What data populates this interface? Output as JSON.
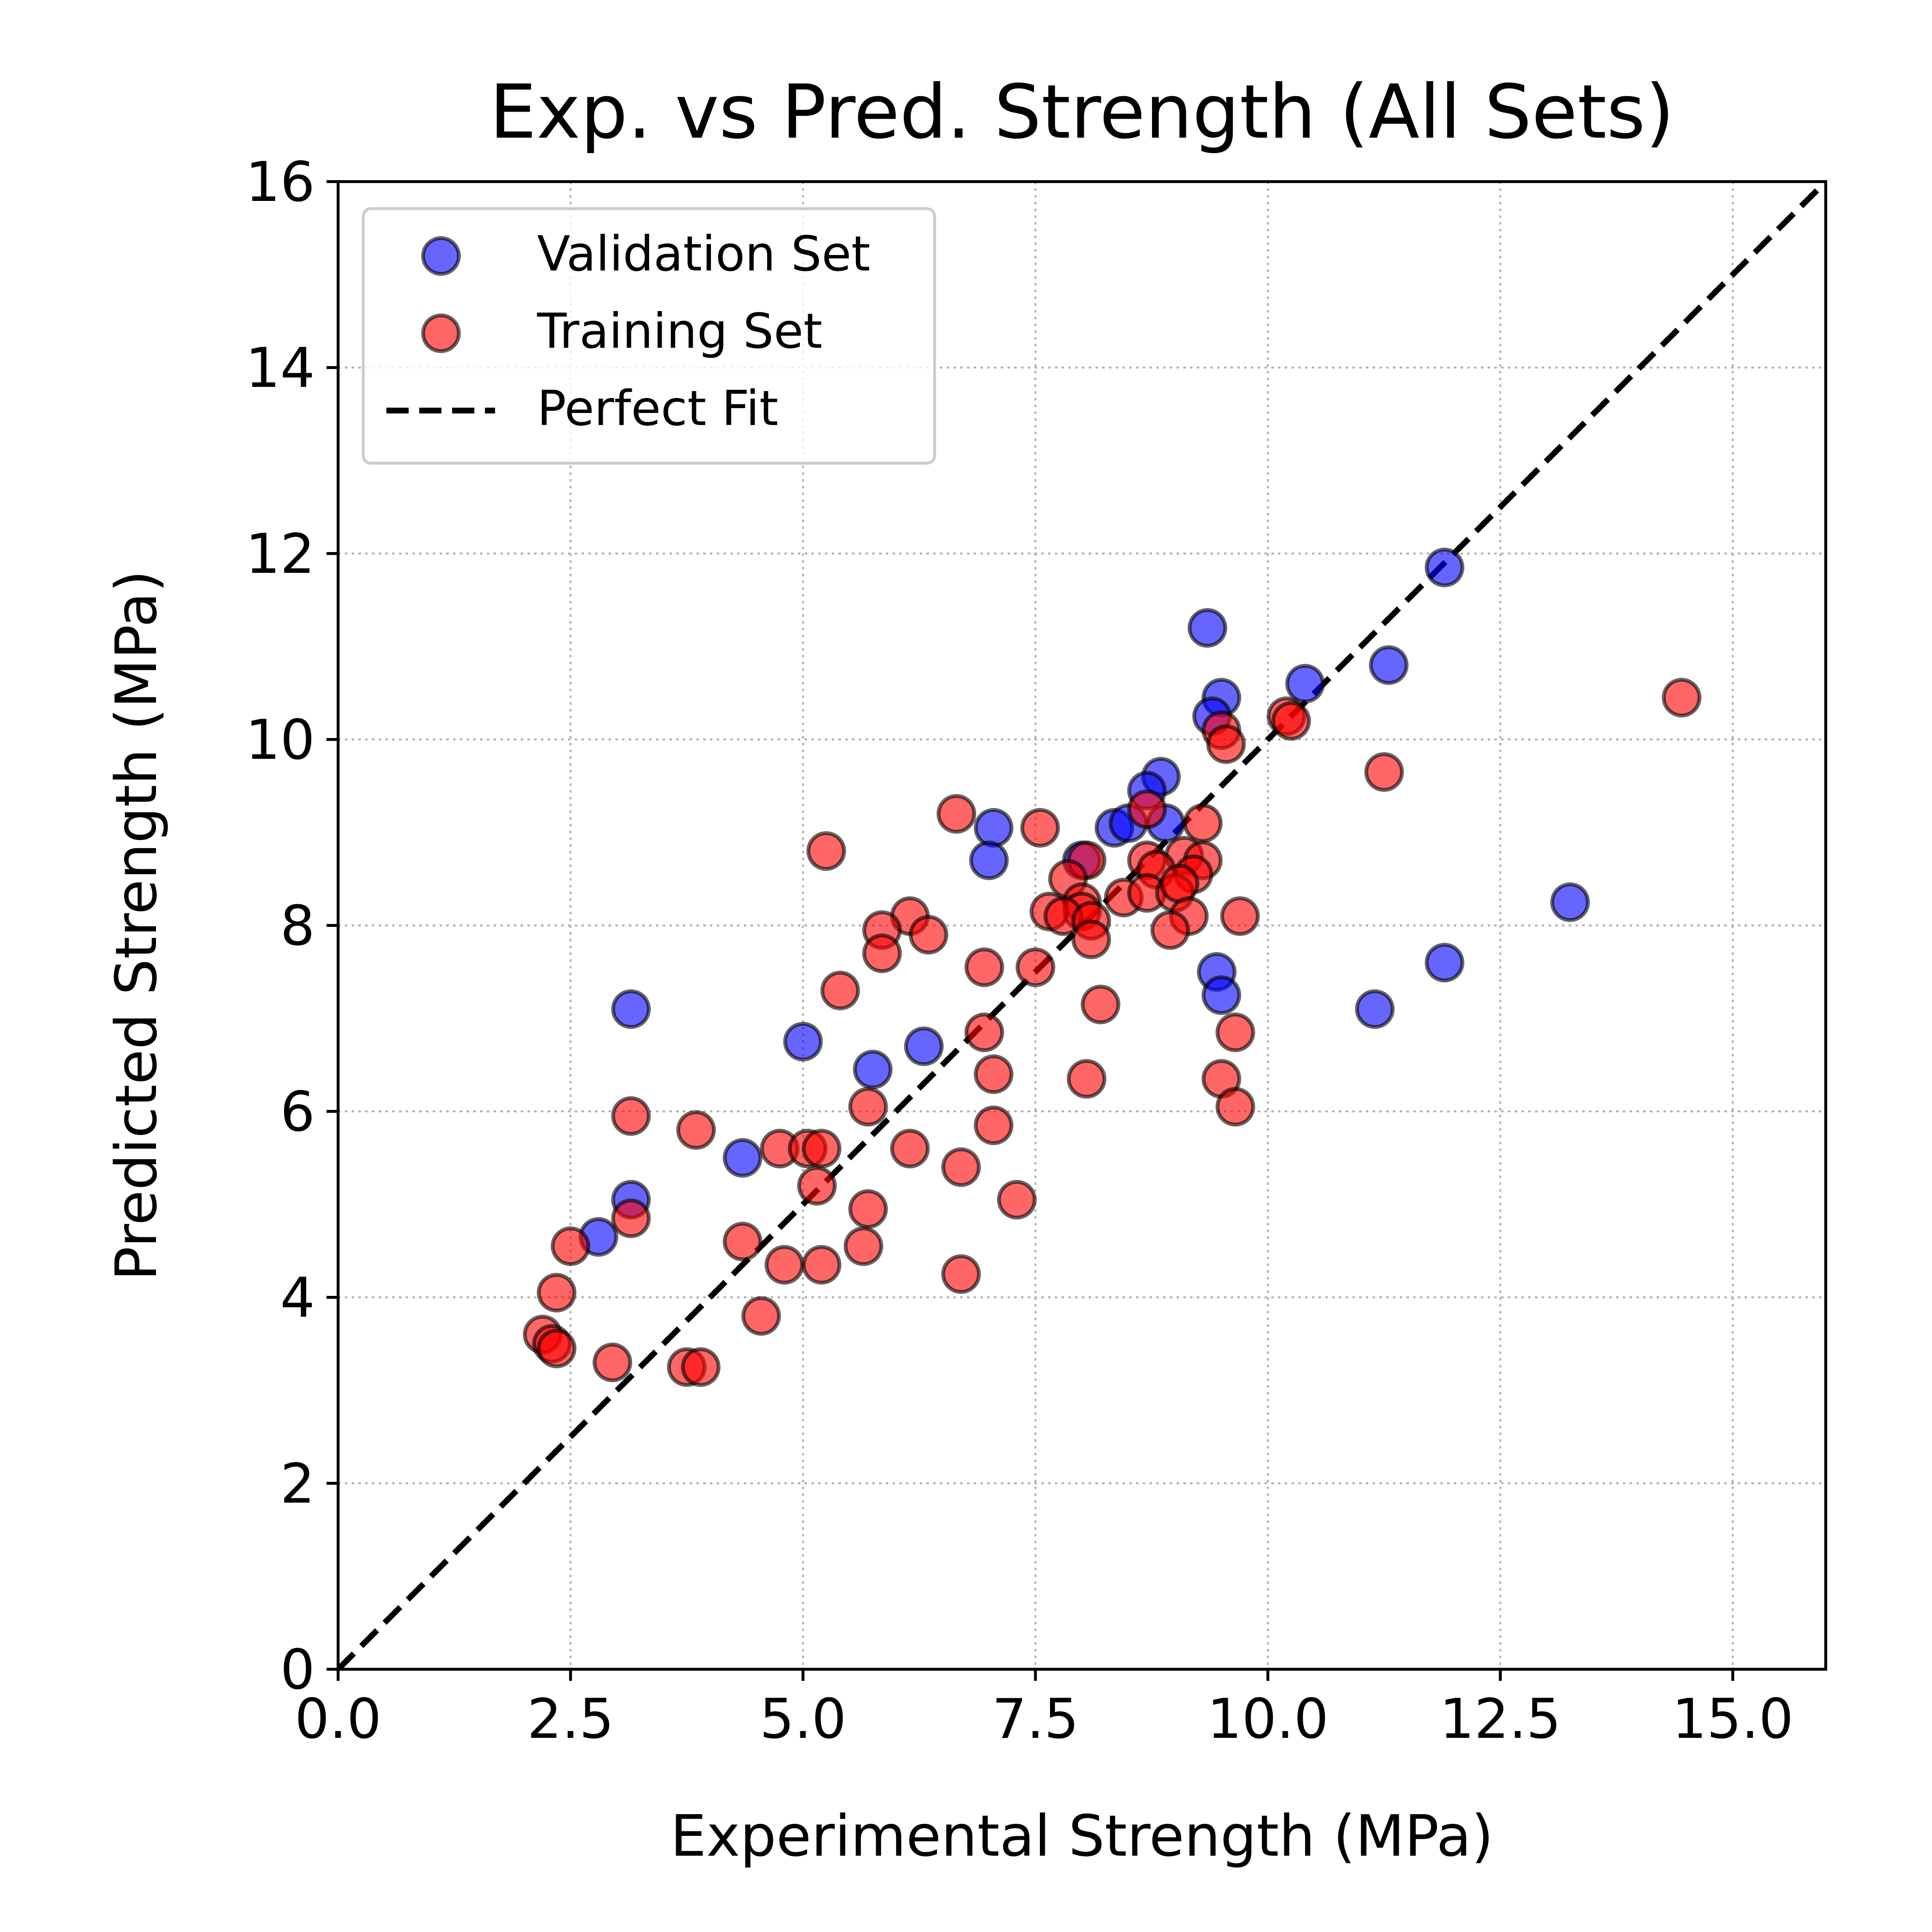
{
  "chart_data": {
    "type": "scatter",
    "title": "Exp. vs Pred. Strength (All Sets)",
    "xlabel": "Experimental Strength (MPa)",
    "ylabel": "Predicted Strength (MPa)",
    "xlim": [
      0,
      16
    ],
    "ylim": [
      0,
      16
    ],
    "xticks": [
      0,
      2.5,
      5,
      7.5,
      10,
      12.5,
      15
    ],
    "xtick_labels": [
      "0.0",
      "2.5",
      "5.0",
      "7.5",
      "10.0",
      "12.5",
      "15.0"
    ],
    "yticks": [
      0,
      2,
      4,
      6,
      8,
      10,
      12,
      14,
      16
    ],
    "ytick_labels": [
      "0",
      "2",
      "4",
      "6",
      "8",
      "10",
      "12",
      "14",
      "16"
    ],
    "grid": true,
    "legend_position": "top-left",
    "series": [
      {
        "name": "Validation Set",
        "color": "#0000ff",
        "marker": "circle",
        "points": [
          [
            11.9,
            11.85
          ],
          [
            9.35,
            11.2
          ],
          [
            11.3,
            10.8
          ],
          [
            10.4,
            10.6
          ],
          [
            9.5,
            10.45
          ],
          [
            9.4,
            10.25
          ],
          [
            8.85,
            9.6
          ],
          [
            8.7,
            9.45
          ],
          [
            8.35,
            9.05
          ],
          [
            8.5,
            9.1
          ],
          [
            8.9,
            9.1
          ],
          [
            7.05,
            9.05
          ],
          [
            8.0,
            8.7
          ],
          [
            7.0,
            8.7
          ],
          [
            13.25,
            8.25
          ],
          [
            11.9,
            7.6
          ],
          [
            9.45,
            7.5
          ],
          [
            11.15,
            7.1
          ],
          [
            9.5,
            7.25
          ],
          [
            3.15,
            7.1
          ],
          [
            5.0,
            6.75
          ],
          [
            6.3,
            6.7
          ],
          [
            5.75,
            6.45
          ],
          [
            4.35,
            5.5
          ],
          [
            3.15,
            5.05
          ],
          [
            2.8,
            4.65
          ]
        ]
      },
      {
        "name": "Training Set",
        "color": "#ff0000",
        "marker": "circle",
        "points": [
          [
            14.45,
            10.45
          ],
          [
            10.2,
            10.25
          ],
          [
            10.25,
            10.2
          ],
          [
            9.5,
            10.1
          ],
          [
            9.55,
            9.95
          ],
          [
            11.25,
            9.65
          ],
          [
            8.7,
            9.25
          ],
          [
            6.65,
            9.2
          ],
          [
            7.55,
            9.05
          ],
          [
            9.3,
            9.1
          ],
          [
            5.25,
            8.8
          ],
          [
            9.1,
            8.75
          ],
          [
            8.05,
            8.7
          ],
          [
            8.7,
            8.7
          ],
          [
            9.3,
            8.7
          ],
          [
            8.8,
            8.6
          ],
          [
            9.2,
            8.55
          ],
          [
            7.85,
            8.5
          ],
          [
            8.45,
            8.3
          ],
          [
            8.7,
            8.35
          ],
          [
            9.0,
            8.35
          ],
          [
            9.05,
            8.45
          ],
          [
            8.0,
            8.25
          ],
          [
            8.0,
            8.15
          ],
          [
            7.65,
            8.15
          ],
          [
            7.8,
            8.1
          ],
          [
            8.1,
            8.05
          ],
          [
            9.15,
            8.1
          ],
          [
            9.7,
            8.1
          ],
          [
            6.15,
            8.1
          ],
          [
            5.85,
            7.95
          ],
          [
            6.35,
            7.9
          ],
          [
            8.95,
            7.95
          ],
          [
            8.1,
            7.85
          ],
          [
            5.85,
            7.7
          ],
          [
            6.95,
            7.55
          ],
          [
            7.5,
            7.55
          ],
          [
            5.4,
            7.3
          ],
          [
            8.2,
            7.15
          ],
          [
            6.95,
            6.85
          ],
          [
            9.65,
            6.85
          ],
          [
            7.05,
            6.4
          ],
          [
            8.05,
            6.35
          ],
          [
            9.5,
            6.35
          ],
          [
            5.7,
            6.05
          ],
          [
            9.65,
            6.05
          ],
          [
            3.15,
            5.95
          ],
          [
            7.05,
            5.85
          ],
          [
            3.85,
            5.8
          ],
          [
            4.75,
            5.6
          ],
          [
            5.05,
            5.6
          ],
          [
            5.2,
            5.6
          ],
          [
            6.15,
            5.6
          ],
          [
            6.7,
            5.4
          ],
          [
            5.15,
            5.2
          ],
          [
            7.3,
            5.05
          ],
          [
            5.7,
            4.95
          ],
          [
            3.15,
            4.85
          ],
          [
            2.5,
            4.55
          ],
          [
            4.35,
            4.6
          ],
          [
            5.65,
            4.55
          ],
          [
            4.8,
            4.35
          ],
          [
            5.2,
            4.35
          ],
          [
            6.7,
            4.25
          ],
          [
            2.35,
            4.05
          ],
          [
            4.55,
            3.8
          ],
          [
            2.2,
            3.6
          ],
          [
            2.3,
            3.5
          ],
          [
            2.35,
            3.45
          ],
          [
            2.95,
            3.3
          ],
          [
            3.75,
            3.25
          ],
          [
            3.9,
            3.25
          ]
        ]
      },
      {
        "name": "Perfect Fit",
        "color": "#000000",
        "marker": "dashed-line",
        "points": [
          [
            0,
            0
          ],
          [
            16,
            16
          ]
        ]
      }
    ]
  }
}
